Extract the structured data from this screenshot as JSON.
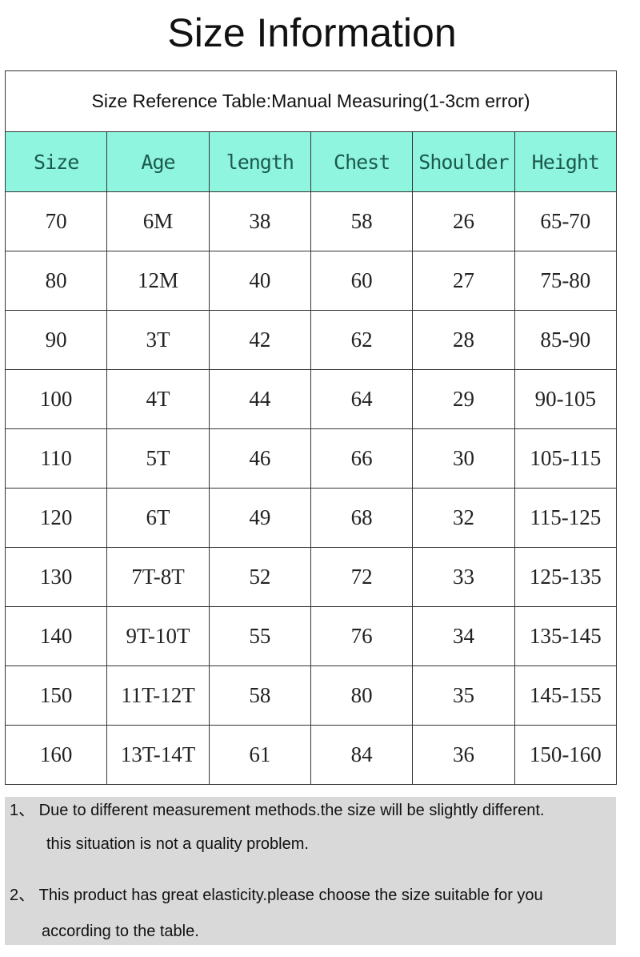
{
  "title": "Size Information",
  "table": {
    "caption": "Size Reference Table:Manual Measuring(1-3cm error)",
    "header_color": "#8ff5de",
    "columns": [
      "Size",
      "Age",
      "length",
      "Chest",
      "Shoulder",
      "Height"
    ],
    "rows": [
      [
        "70",
        "6M",
        "38",
        "58",
        "26",
        "65-70"
      ],
      [
        "80",
        "12M",
        "40",
        "60",
        "27",
        "75-80"
      ],
      [
        "90",
        "3T",
        "42",
        "62",
        "28",
        "85-90"
      ],
      [
        "100",
        "4T",
        "44",
        "64",
        "29",
        "90-105"
      ],
      [
        "110",
        "5T",
        "46",
        "66",
        "30",
        "105-115"
      ],
      [
        "120",
        "6T",
        "49",
        "68",
        "32",
        "115-125"
      ],
      [
        "130",
        "7T-8T",
        "52",
        "72",
        "33",
        "125-135"
      ],
      [
        "140",
        "9T-10T",
        "55",
        "76",
        "34",
        "135-145"
      ],
      [
        "150",
        "11T-12T",
        "58",
        "80",
        "35",
        "145-155"
      ],
      [
        "160",
        "13T-14T",
        "61",
        "84",
        "36",
        "150-160"
      ]
    ]
  },
  "notes": {
    "line1": "1、 Due to different measurement methods.the size will be slightly different.",
    "line2": "this situation is not a quality problem.",
    "line3": "2、 This product has great elasticity.please choose the size suitable for you",
    "line4": "according to the table."
  }
}
